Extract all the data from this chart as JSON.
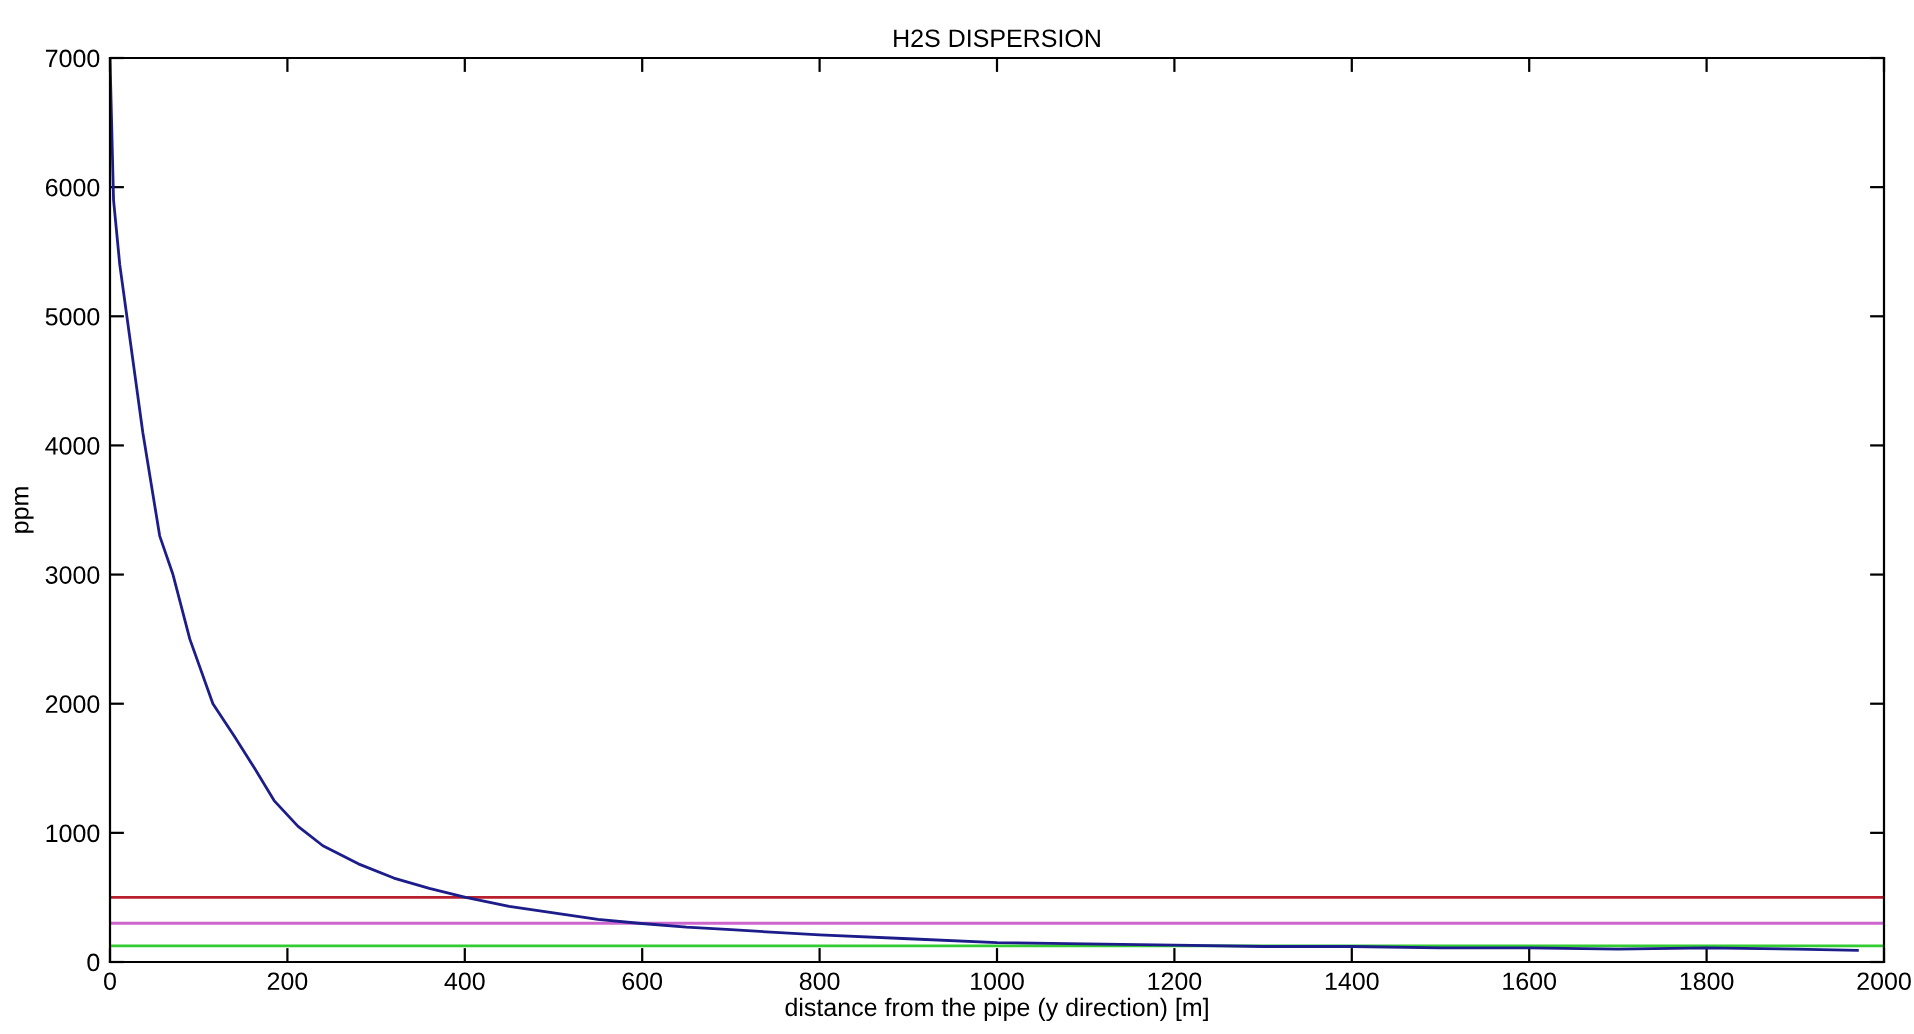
{
  "chart_data": {
    "type": "line",
    "title": "H2S DISPERSION",
    "xlabel": "distance from the pipe (y direction) [m]",
    "ylabel": "ppm",
    "series": [
      {
        "color": "#1c1c8a",
        "x": [
          0,
          4,
          11,
          19,
          37,
          56,
          71,
          90,
          116,
          140,
          163,
          185,
          212,
          240,
          280,
          320,
          360,
          401,
          450,
          500,
          550,
          596,
          650,
          700,
          800,
          900,
          1000,
          1100,
          1200,
          1300,
          1400,
          1500,
          1600,
          1700,
          1800,
          1900,
          1970
        ],
        "values": [
          7000,
          5900,
          5400,
          5000,
          4100,
          3300,
          3000,
          2500,
          2000,
          1750,
          1500,
          1250,
          1050,
          900,
          760,
          650,
          570,
          500,
          430,
          380,
          330,
          300,
          270,
          250,
          210,
          180,
          150,
          140,
          130,
          120,
          120,
          110,
          110,
          100,
          110,
          100,
          90
        ]
      }
    ],
    "xlim": [
      0,
      2000
    ],
    "ylim": [
      0,
      7000
    ],
    "xticks": [
      0,
      200,
      400,
      600,
      800,
      1000,
      1200,
      1400,
      1600,
      1800,
      2000
    ],
    "yticks": [
      0,
      1000,
      2000,
      3000,
      4000,
      5000,
      6000,
      7000
    ],
    "ref_lines": [
      {
        "axis": "y",
        "value": 500,
        "color": "#b8202e"
      },
      {
        "axis": "y",
        "value": 300,
        "color": "#cc66cc"
      },
      {
        "axis": "y",
        "value": 125,
        "color": "#33cc33"
      }
    ],
    "grid": false,
    "legend": false,
    "marker": "none",
    "line_style": "solid"
  }
}
